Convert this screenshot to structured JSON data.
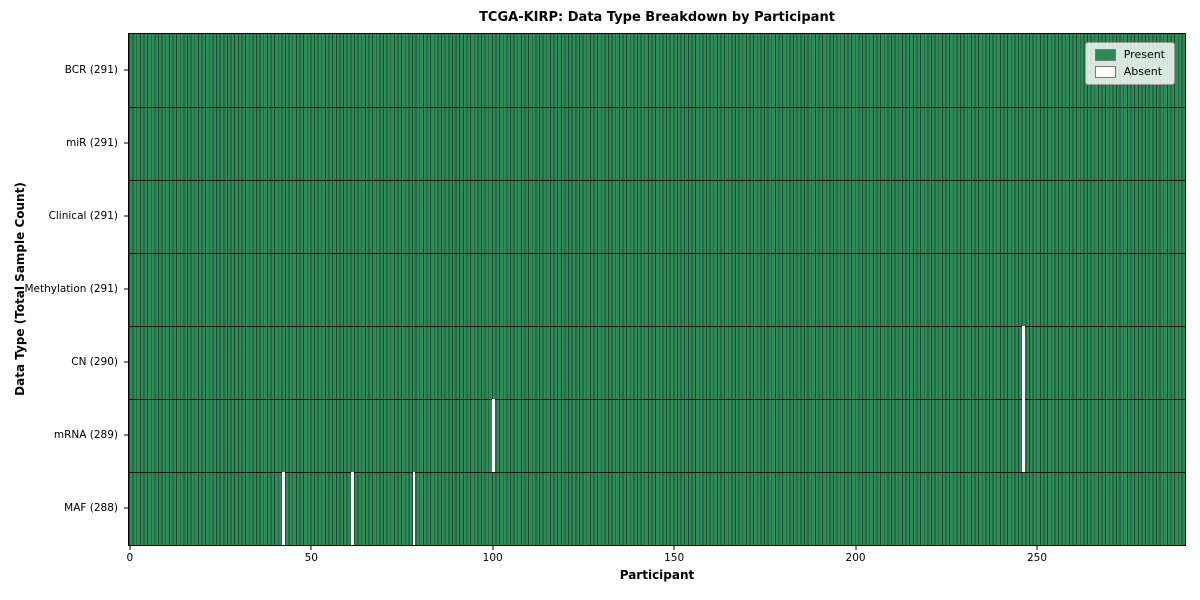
{
  "chart_data": {
    "type": "heatmap",
    "title": "TCGA-KIRP: Data Type Breakdown by Participant",
    "xlabel": "Participant",
    "ylabel": "Data Type (Total Sample Count)",
    "participants_total": 291,
    "xlim": [
      -0.5,
      290.5
    ],
    "x_ticks": [
      0,
      50,
      100,
      150,
      200,
      250
    ],
    "grid": "row-dividers-only",
    "legend_position": "upper-right",
    "rows": [
      {
        "label": "BCR (291)",
        "data_type": "BCR",
        "present_count": 291,
        "absent_participants": []
      },
      {
        "label": "miR (291)",
        "data_type": "miR",
        "present_count": 291,
        "absent_participants": []
      },
      {
        "label": "Clinical (291)",
        "data_type": "Clinical",
        "present_count": 291,
        "absent_participants": []
      },
      {
        "label": "Methylation (291)",
        "data_type": "Methylation",
        "present_count": 291,
        "absent_participants": []
      },
      {
        "label": "CN (290)",
        "data_type": "CN",
        "present_count": 290,
        "absent_participants": [
          246
        ]
      },
      {
        "label": "mRNA (289)",
        "data_type": "mRNA",
        "present_count": 289,
        "absent_participants": [
          100,
          246
        ]
      },
      {
        "label": "MAF (288)",
        "data_type": "MAF",
        "present_count": 288,
        "absent_participants": [
          42,
          61,
          78
        ]
      }
    ],
    "legend": [
      {
        "label": "Present",
        "color": "#2e8b57"
      },
      {
        "label": "Absent",
        "color": "#ffffff"
      }
    ],
    "colors": {
      "present": "#2e8b57",
      "absent": "#ffffff",
      "bar_edge": "#1b4a30",
      "row_divider": "#111111",
      "axis_border": "#000000"
    }
  }
}
